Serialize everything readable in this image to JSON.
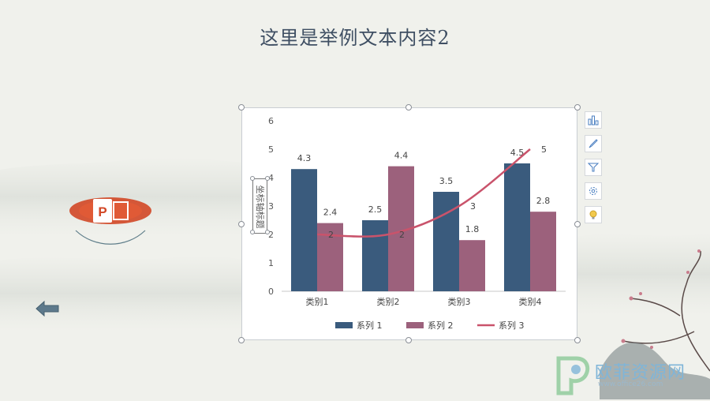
{
  "slide": {
    "title": "这里是举例文本内容2"
  },
  "chart_data": {
    "type": "bar",
    "categories": [
      "类别1",
      "类别2",
      "类别3",
      "类别4"
    ],
    "series": [
      {
        "name": "系列 1",
        "values": [
          4.3,
          2.5,
          3.5,
          4.5
        ],
        "color": "#3a5b7d"
      },
      {
        "name": "系列 2",
        "values": [
          2.4,
          4.4,
          1.8,
          2.8
        ],
        "color": "#9c617c"
      },
      {
        "name": "系列 3",
        "values": [
          2,
          2,
          3,
          5
        ],
        "color": "#c9536b",
        "type": "line"
      }
    ],
    "ylim": [
      0,
      6
    ],
    "yticks": [
      "0",
      "1",
      "2",
      "3",
      "4",
      "5",
      "6"
    ],
    "ylabel": "坐标轴标题",
    "legend_position": "bottom",
    "gridlines": false
  },
  "chart_tools": {
    "items": [
      "chart-elements-icon",
      "chart-styles-icon",
      "chart-filters-icon",
      "settings-icon",
      "idea-icon"
    ]
  },
  "watermark": {
    "text": "欧菲资源网",
    "url": "www.office26.com"
  },
  "colors": {
    "background": "#f0f1ec",
    "title": "#3f4f63",
    "logo_orange": "#d24726"
  }
}
